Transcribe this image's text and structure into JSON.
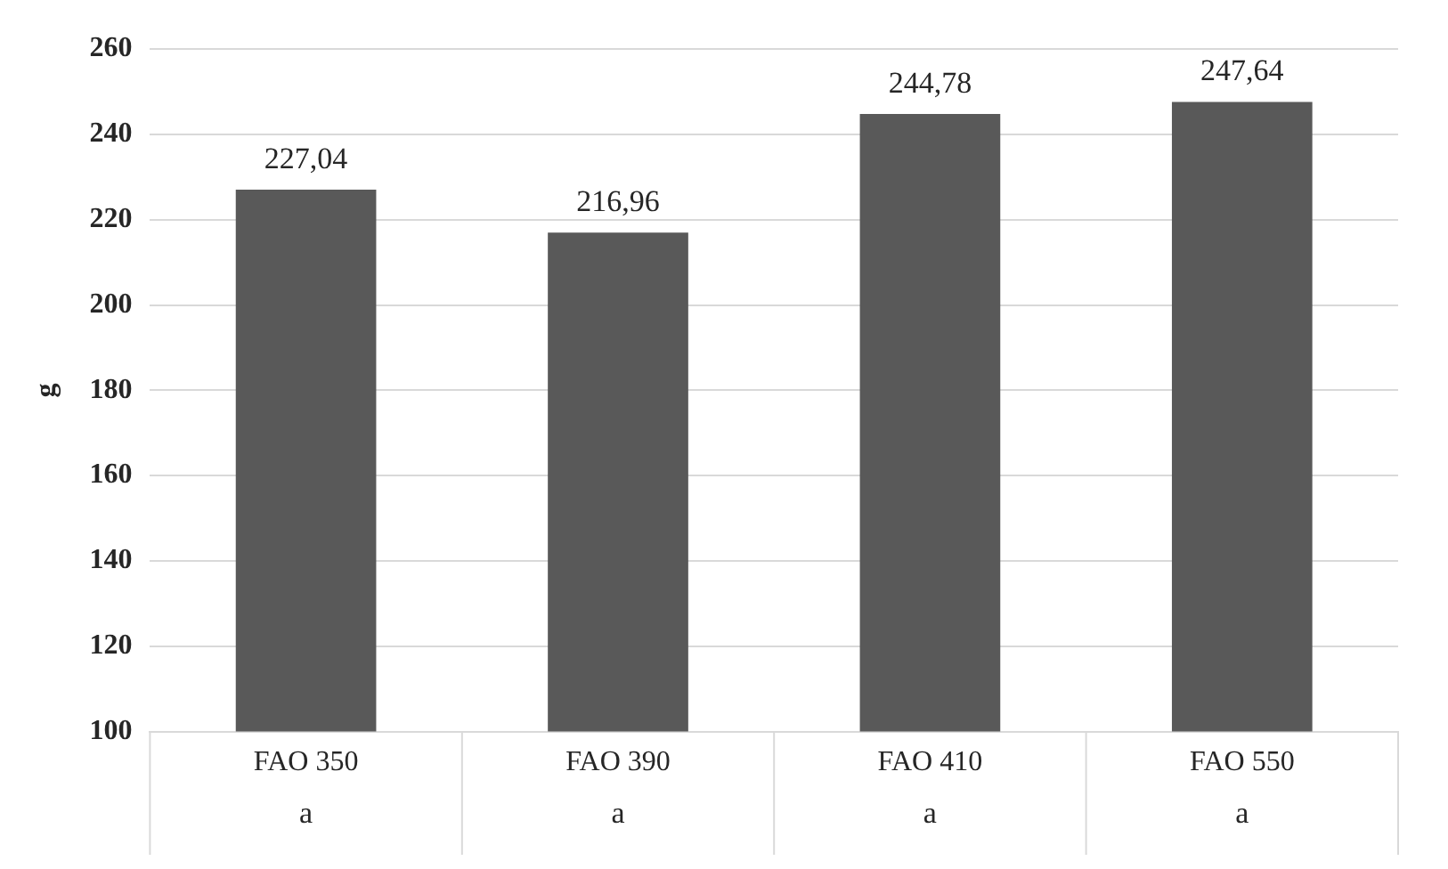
{
  "chart_data": {
    "type": "bar",
    "ylabel": "g",
    "categories": [
      "FAO 350",
      "FAO 390",
      "FAO 410",
      "FAO 550"
    ],
    "values": [
      227.04,
      216.96,
      244.78,
      247.64
    ],
    "value_labels": [
      "227,04",
      "216,96",
      "244,78",
      "247,64"
    ],
    "color": "#595959",
    "ylim": [
      100,
      260
    ],
    "yticks": [
      100,
      120,
      140,
      160,
      180,
      200,
      220,
      240,
      260
    ],
    "grid": "y",
    "legend": false,
    "annotations": [
      "a",
      "a",
      "a",
      "a"
    ]
  }
}
